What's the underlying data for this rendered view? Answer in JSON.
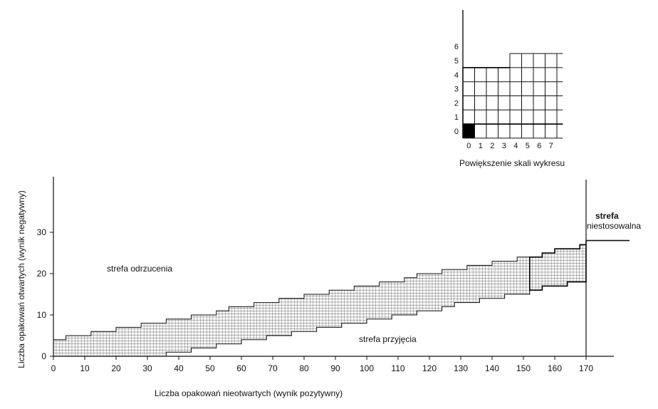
{
  "chart_data": [
    {
      "type": "area",
      "xlabel": "Liczba opakowań nieotwartych (wynik pozytywny)",
      "ylabel": "Liczba opakowań otwartych (wynik negatywny)",
      "xlim": [
        0,
        172
      ],
      "ylim": [
        0,
        44
      ],
      "x_ticks": [
        0,
        10,
        20,
        30,
        40,
        50,
        60,
        70,
        80,
        90,
        100,
        110,
        120,
        130,
        140,
        150,
        160,
        170
      ],
      "y_ticks": [
        0,
        10,
        20,
        30
      ],
      "series": [
        {
          "x": [
            0,
            4,
            8,
            12,
            16,
            20,
            24,
            28,
            32,
            36,
            40,
            44,
            48,
            52,
            56,
            60,
            64,
            68,
            72,
            76,
            80,
            84,
            88,
            92,
            96,
            100,
            104,
            108,
            112,
            116,
            120,
            124,
            128,
            132,
            136,
            140,
            144,
            148,
            152,
            156,
            160,
            164,
            168,
            170
          ],
          "upper": [
            4,
            5,
            5,
            6,
            6,
            7,
            7,
            8,
            8,
            9,
            9,
            10,
            10,
            11,
            12,
            12,
            13,
            13,
            14,
            14,
            15,
            15,
            16,
            16,
            17,
            17,
            18,
            18,
            19,
            20,
            20,
            21,
            21,
            22,
            22,
            23,
            23,
            24,
            24,
            25,
            26,
            26,
            27,
            28
          ],
          "lower": [
            0,
            0,
            0,
            0,
            0,
            0,
            0,
            0,
            0,
            1,
            1,
            2,
            2,
            3,
            3,
            4,
            4,
            5,
            5,
            6,
            6,
            7,
            7,
            8,
            8,
            9,
            9,
            10,
            10,
            11,
            11,
            12,
            13,
            13,
            14,
            14,
            15,
            15,
            16,
            17,
            17,
            18,
            18,
            20
          ]
        }
      ],
      "annotations": [
        "strefa odrzucenia",
        "strefa przyjęcia"
      ],
      "boundary_annotation": {
        "bold": "strefa",
        "normal": "niestosowalna"
      },
      "grid": false
    },
    {
      "type": "area",
      "title": "Powiększenie skali wykresu",
      "x_ticks": [
        0,
        1,
        2,
        3,
        4,
        5,
        6,
        7
      ],
      "y_ticks": [
        0,
        1,
        2,
        3,
        4,
        5,
        6
      ],
      "xlim": [
        0,
        7.5
      ],
      "ylim": [
        -0.5,
        8
      ],
      "upper_steps": [
        {
          "x0": 0,
          "x1": 3.5,
          "y": 4.5
        },
        {
          "x0": 3.5,
          "x1": 7.5,
          "y": 5.5
        }
      ],
      "filled_cell": [
        0,
        0
      ],
      "grid": true
    }
  ]
}
